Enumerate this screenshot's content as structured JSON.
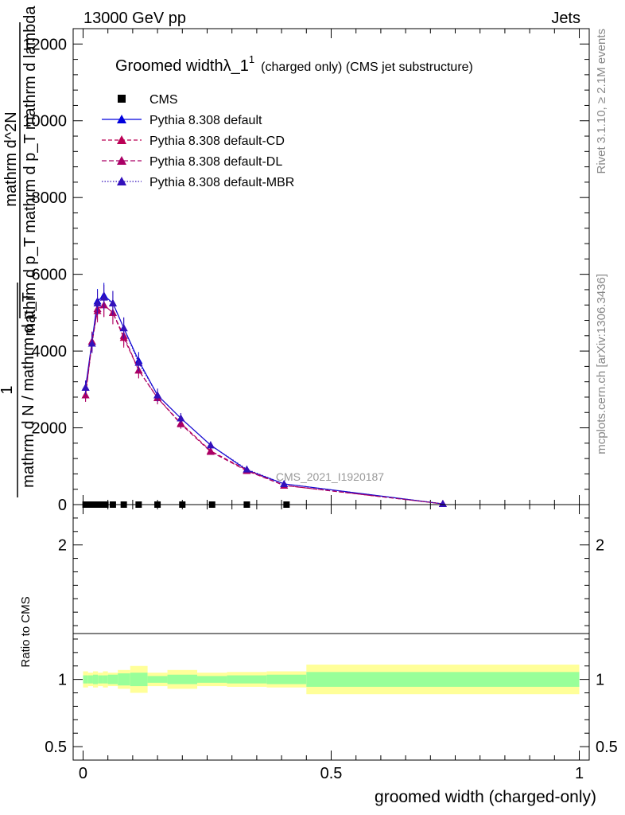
{
  "header": {
    "left": "13000 GeV pp",
    "right": "Jets"
  },
  "side_labels": {
    "rivet": "Rivet 3.1.10, ≥ 2.1M events",
    "mcplots": "mcplots.cern.ch [arXiv:1306.3436]"
  },
  "watermark": "CMS_2021_I1920187",
  "colors": {
    "default": "#0000dd",
    "default_cd": "#bb0055",
    "default_dl": "#aa0066",
    "default_mbr": "#3311bb",
    "band_outer": "#ffff99",
    "band_inner": "#99ff99"
  },
  "chart_data": [
    {
      "type": "line",
      "title": "Groomed widthλ_1",
      "title_sup": "1",
      "title_suffix": "(charged only) (CMS jet substructure)",
      "ylabel": {
        "num_top": "1",
        "den_top": "mathrm d N / mathrm d p_T",
        "num_main": "mathrm d^2N",
        "den_main": "mathrm d p_T mathrm d p_T mathrm d lambda"
      },
      "ylim": [
        0,
        12400
      ],
      "yticks": [
        0,
        2000,
        4000,
        6000,
        8000,
        10000,
        12000
      ],
      "ytick_labels": [
        "0",
        "2000",
        "4000",
        "6000",
        "8000",
        "10000",
        "12000"
      ],
      "xlim": [
        -0.02,
        1.02
      ],
      "grid": false,
      "legend_position": "top-left",
      "series": [
        {
          "name": "CMS",
          "marker": "square",
          "x": [
            0.005,
            0.015,
            0.025,
            0.035,
            0.045,
            0.06,
            0.082,
            0.112,
            0.15,
            0.2,
            0.26,
            0.33,
            0.41
          ],
          "values": [
            0,
            0,
            0,
            0,
            0,
            0,
            0,
            0,
            0,
            0,
            0,
            0,
            0
          ]
        },
        {
          "name": "Pythia 8.308 default",
          "line": "solid",
          "x": [
            0.005,
            0.018,
            0.029,
            0.042,
            0.06,
            0.082,
            0.112,
            0.15,
            0.197,
            0.257,
            0.33,
            0.405,
            0.725
          ],
          "values": [
            3050,
            4250,
            5300,
            5450,
            5250,
            4600,
            3750,
            2850,
            2250,
            1550,
            900,
            540,
            20
          ]
        },
        {
          "name": "Pythia 8.308 default-CD",
          "line": "dashed",
          "x": [
            0.005,
            0.018,
            0.029,
            0.042,
            0.06,
            0.082,
            0.112,
            0.15,
            0.197,
            0.257,
            0.33,
            0.405,
            0.725
          ],
          "values": [
            2850,
            4250,
            5050,
            5200,
            5000,
            4350,
            3500,
            2780,
            2120,
            1400,
            900,
            500,
            20
          ]
        },
        {
          "name": "Pythia 8.308 default-DL",
          "line": "dashed",
          "x": [
            0.005,
            0.018,
            0.029,
            0.042,
            0.06,
            0.082,
            0.112,
            0.15,
            0.197,
            0.257,
            0.33,
            0.405,
            0.725
          ],
          "values": [
            2850,
            4200,
            5100,
            5200,
            5000,
            4400,
            3500,
            2780,
            2100,
            1380,
            880,
            500,
            20
          ]
        },
        {
          "name": "Pythia 8.308 default-MBR",
          "line": "dotted",
          "x": [
            0.005,
            0.018,
            0.029,
            0.042,
            0.06,
            0.082,
            0.112,
            0.15,
            0.197,
            0.257,
            0.33,
            0.405,
            0.725
          ],
          "values": [
            3050,
            4200,
            5250,
            5400,
            5250,
            4600,
            3700,
            2850,
            2250,
            1550,
            920,
            540,
            20
          ]
        }
      ]
    },
    {
      "type": "area",
      "ylabel": "Ratio to CMS",
      "xlabel": "groomed width (charged-only)",
      "ylim": [
        0.4,
        2.3
      ],
      "yticks": [
        0.5,
        1,
        2
      ],
      "ytick_labels": [
        "0.5",
        "1",
        "2"
      ],
      "xticks": [
        0,
        0.5,
        1
      ],
      "xtick_labels": [
        "0",
        "0.5",
        "1"
      ],
      "bands": {
        "edges": [
          0.0,
          0.01,
          0.02,
          0.03,
          0.04,
          0.05,
          0.07,
          0.095,
          0.13,
          0.17,
          0.23,
          0.29,
          0.37,
          0.45,
          1.0
        ],
        "outer": [
          0.06,
          0.05,
          0.06,
          0.05,
          0.06,
          0.05,
          0.07,
          0.1,
          0.05,
          0.07,
          0.05,
          0.055,
          0.06,
          0.11
        ],
        "inner": [
          0.03,
          0.03,
          0.035,
          0.03,
          0.03,
          0.035,
          0.045,
          0.05,
          0.025,
          0.035,
          0.025,
          0.03,
          0.035,
          0.055
        ]
      },
      "reference": 1
    }
  ]
}
